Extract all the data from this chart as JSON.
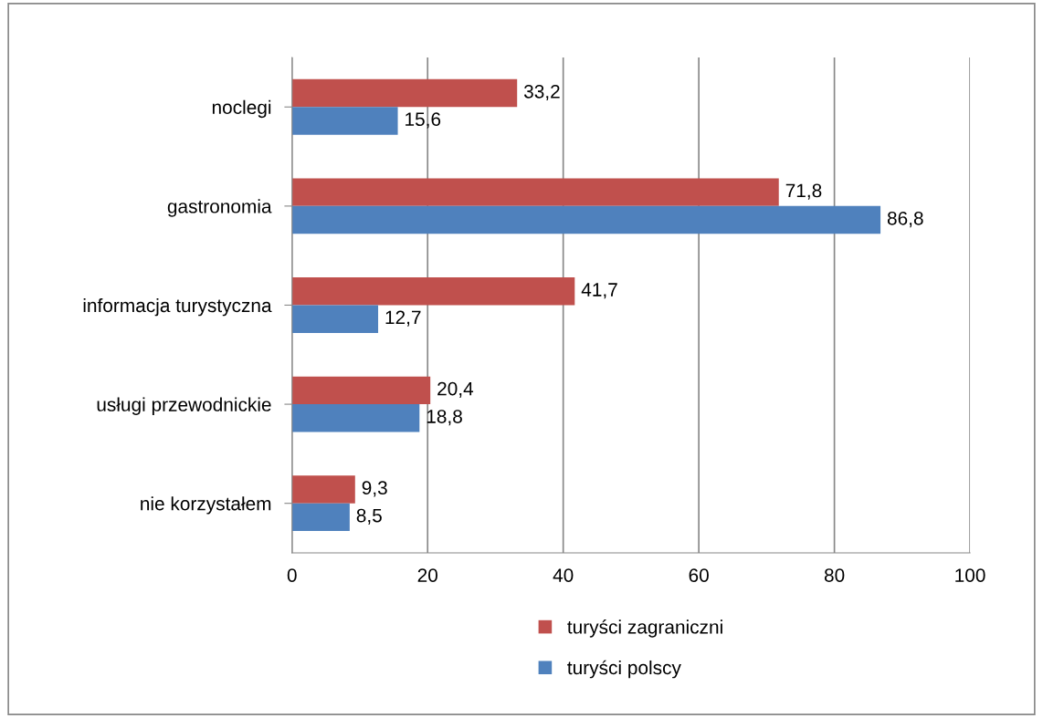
{
  "chart_data": {
    "type": "bar",
    "orientation": "horizontal",
    "categories": [
      "noclegi",
      "gastronomia",
      "informacja turystyczna",
      "usługi przewodnickie",
      "nie korzystałem"
    ],
    "series": [
      {
        "name": "turyści zagraniczni",
        "color": "#c0504d",
        "values": [
          33.2,
          71.8,
          41.7,
          20.4,
          9.3
        ],
        "value_labels": [
          "33,2",
          "71,8",
          "41,7",
          "20,4",
          "9,3"
        ]
      },
      {
        "name": "turyści polscy",
        "color": "#4f81bd",
        "values": [
          15.6,
          86.8,
          12.7,
          18.8,
          8.5
        ],
        "value_labels": [
          "15,6",
          "86,8",
          "12,7",
          "18,8",
          "8,5"
        ]
      }
    ],
    "xlim": [
      0,
      100
    ],
    "xticks": [
      0,
      20,
      40,
      60,
      80,
      100
    ],
    "grid": "x",
    "legend": "bottom"
  }
}
